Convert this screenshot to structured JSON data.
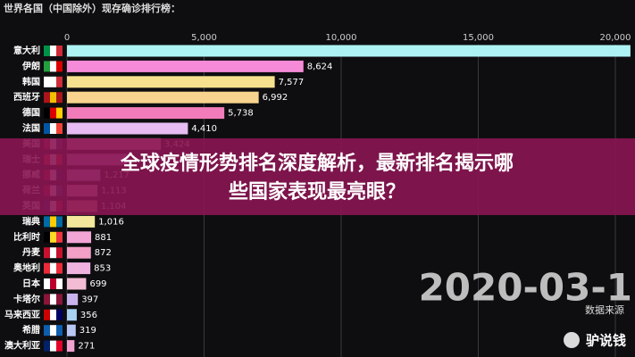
{
  "chart_data": {
    "type": "bar",
    "orientation": "horizontal",
    "title": "世界各国（中国除外）现存确诊排行榜：",
    "categories": [
      "意大利",
      "伊朗",
      "韩国",
      "西班牙",
      "德国",
      "法国",
      "美国",
      "瑞士",
      "挪威",
      "荷兰",
      "英国",
      "瑞典",
      "比利时",
      "丹麦",
      "奥地利",
      "日本",
      "卡塔尔",
      "马来西亚",
      "希腊",
      "澳大利亚"
    ],
    "values": [
      20550,
      8624,
      7577,
      6992,
      5738,
      4410,
      3424,
      2200,
      1217,
      1113,
      1104,
      1016,
      881,
      872,
      853,
      699,
      397,
      356,
      319,
      271
    ],
    "value_labels": [
      null,
      "8,624",
      "7,577",
      "6,992",
      "5,738",
      "4,410",
      "3,424",
      null,
      "1,217",
      "1,113",
      "1,104",
      "1,016",
      "881",
      "872",
      "853",
      "699",
      "397",
      "356",
      "319",
      "271"
    ],
    "colors": [
      "#aef3f3",
      "#f58bd8",
      "#f6e28e",
      "#f8d48e",
      "#f27cb9",
      "#e6bcf2",
      "#f4a9c8",
      "#d9a6e8",
      "#c7b8f0",
      "#f2b4cf",
      "#f0a7a7",
      "#f2e79a",
      "#f3a6d6",
      "#f39fc6",
      "#f0b3e0",
      "#f2bdd4",
      "#c9b3ee",
      "#a9d2f2",
      "#b9c8f2",
      "#f3a2cf"
    ],
    "xlim": [
      0,
      20000
    ],
    "xticks": [
      0,
      {
        "value": 5000,
        "label": "5,000"
      },
      {
        "value": 10000,
        "label": "10,000"
      },
      {
        "value": 15000,
        "label": "15,000"
      },
      {
        "value": 20000,
        "label": "20,000"
      }
    ],
    "grid": true,
    "date_label": "2020-03-1",
    "source": "数据来源",
    "overlay_title_lines": [
      "全球疫情形势排名深度解析，最新排名揭示哪",
      "些国家表现最亮眼？"
    ],
    "watermark": "驴说钱"
  }
}
